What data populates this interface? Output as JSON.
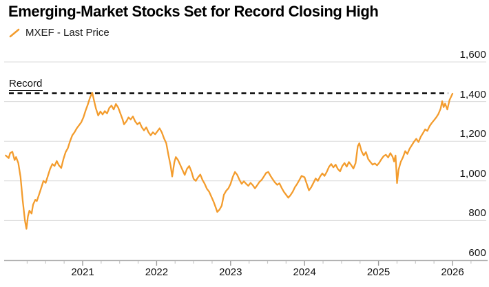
{
  "title": "Emerging-Market Stocks Set for Record Closing High",
  "legend": {
    "swatch_icon": "orange-slash-icon",
    "label": "MXEF - Last Price"
  },
  "annotation": {
    "label": "Record",
    "level": 1442
  },
  "colors": {
    "line": "#F39C2D",
    "grid": "#D9D9D9",
    "axis": "#B3B3B3",
    "major_tick": "#9B9B9B",
    "minor_tick": "#C6C6C6",
    "record_dash": "#000000",
    "text": "#111111",
    "background": "#FFFFFF"
  },
  "chart_data": {
    "type": "line",
    "title": "Emerging-Market Stocks Set for Record Closing High",
    "xlabel": "",
    "ylabel": "",
    "ylim": [
      600,
      1600
    ],
    "xlim": [
      2019.95,
      2026.05
    ],
    "grid": "horizontal",
    "legend_position": "top-left",
    "y_ticks": {
      "values": [
        1600,
        1400,
        1200,
        1000,
        800,
        600
      ],
      "labels": [
        "1,600",
        "1,400",
        "1,200",
        "1,000",
        "800",
        "600"
      ],
      "side": "right"
    },
    "x_ticks": {
      "values": [
        2021,
        2022,
        2023,
        2024,
        2025,
        2026
      ],
      "labels": [
        "2021",
        "2022",
        "2023",
        "2024",
        "2025",
        "2026"
      ],
      "minor_step": 0.25,
      "minor_start": 2020.25,
      "minor_end": 2026.25
    },
    "record_line": {
      "label": "Record",
      "value": 1442,
      "style": "dashed"
    },
    "series": [
      {
        "name": "MXEF - Last Price",
        "points": [
          [
            2019.96,
            1128
          ],
          [
            2020.0,
            1115
          ],
          [
            2020.02,
            1140
          ],
          [
            2020.05,
            1147
          ],
          [
            2020.08,
            1105
          ],
          [
            2020.1,
            1120
          ],
          [
            2020.13,
            1090
          ],
          [
            2020.16,
            1020
          ],
          [
            2020.19,
            900
          ],
          [
            2020.22,
            800
          ],
          [
            2020.24,
            758
          ],
          [
            2020.26,
            820
          ],
          [
            2020.28,
            850
          ],
          [
            2020.31,
            835
          ],
          [
            2020.33,
            880
          ],
          [
            2020.36,
            905
          ],
          [
            2020.38,
            898
          ],
          [
            2020.41,
            930
          ],
          [
            2020.44,
            965
          ],
          [
            2020.47,
            1000
          ],
          [
            2020.5,
            990
          ],
          [
            2020.53,
            1025
          ],
          [
            2020.56,
            1060
          ],
          [
            2020.59,
            1085
          ],
          [
            2020.62,
            1075
          ],
          [
            2020.65,
            1100
          ],
          [
            2020.68,
            1078
          ],
          [
            2020.71,
            1065
          ],
          [
            2020.74,
            1110
          ],
          [
            2020.77,
            1145
          ],
          [
            2020.8,
            1165
          ],
          [
            2020.83,
            1200
          ],
          [
            2020.86,
            1230
          ],
          [
            2020.89,
            1245
          ],
          [
            2020.92,
            1265
          ],
          [
            2020.95,
            1280
          ],
          [
            2020.98,
            1295
          ],
          [
            2021.01,
            1320
          ],
          [
            2021.04,
            1355
          ],
          [
            2021.07,
            1385
          ],
          [
            2021.1,
            1420
          ],
          [
            2021.13,
            1444
          ],
          [
            2021.16,
            1395
          ],
          [
            2021.18,
            1365
          ],
          [
            2021.21,
            1330
          ],
          [
            2021.24,
            1350
          ],
          [
            2021.27,
            1335
          ],
          [
            2021.3,
            1352
          ],
          [
            2021.33,
            1340
          ],
          [
            2021.36,
            1368
          ],
          [
            2021.39,
            1380
          ],
          [
            2021.42,
            1360
          ],
          [
            2021.45,
            1388
          ],
          [
            2021.48,
            1370
          ],
          [
            2021.51,
            1340
          ],
          [
            2021.54,
            1310
          ],
          [
            2021.56,
            1285
          ],
          [
            2021.59,
            1300
          ],
          [
            2021.62,
            1320
          ],
          [
            2021.65,
            1310
          ],
          [
            2021.68,
            1325
          ],
          [
            2021.71,
            1300
          ],
          [
            2021.74,
            1285
          ],
          [
            2021.77,
            1295
          ],
          [
            2021.8,
            1270
          ],
          [
            2021.83,
            1255
          ],
          [
            2021.86,
            1270
          ],
          [
            2021.89,
            1245
          ],
          [
            2021.92,
            1230
          ],
          [
            2021.95,
            1245
          ],
          [
            2021.98,
            1235
          ],
          [
            2022.01,
            1250
          ],
          [
            2022.04,
            1265
          ],
          [
            2022.07,
            1245
          ],
          [
            2022.1,
            1215
          ],
          [
            2022.13,
            1190
          ],
          [
            2022.16,
            1130
          ],
          [
            2022.19,
            1075
          ],
          [
            2022.21,
            1022
          ],
          [
            2022.24,
            1095
          ],
          [
            2022.26,
            1120
          ],
          [
            2022.29,
            1105
          ],
          [
            2022.32,
            1080
          ],
          [
            2022.35,
            1055
          ],
          [
            2022.38,
            1030
          ],
          [
            2022.41,
            1060
          ],
          [
            2022.44,
            1075
          ],
          [
            2022.47,
            1048
          ],
          [
            2022.5,
            1010
          ],
          [
            2022.53,
            1000
          ],
          [
            2022.56,
            1018
          ],
          [
            2022.59,
            1032
          ],
          [
            2022.62,
            1005
          ],
          [
            2022.65,
            985
          ],
          [
            2022.68,
            960
          ],
          [
            2022.71,
            945
          ],
          [
            2022.74,
            920
          ],
          [
            2022.77,
            895
          ],
          [
            2022.8,
            865
          ],
          [
            2022.82,
            843
          ],
          [
            2022.85,
            855
          ],
          [
            2022.88,
            875
          ],
          [
            2022.91,
            930
          ],
          [
            2022.94,
            950
          ],
          [
            2022.97,
            962
          ],
          [
            2023.0,
            985
          ],
          [
            2023.03,
            1020
          ],
          [
            2023.06,
            1045
          ],
          [
            2023.09,
            1030
          ],
          [
            2023.12,
            1005
          ],
          [
            2023.15,
            985
          ],
          [
            2023.18,
            998
          ],
          [
            2023.21,
            985
          ],
          [
            2023.24,
            975
          ],
          [
            2023.27,
            990
          ],
          [
            2023.3,
            978
          ],
          [
            2023.33,
            962
          ],
          [
            2023.36,
            978
          ],
          [
            2023.39,
            995
          ],
          [
            2023.42,
            1005
          ],
          [
            2023.45,
            1022
          ],
          [
            2023.48,
            1040
          ],
          [
            2023.51,
            1045
          ],
          [
            2023.54,
            1025
          ],
          [
            2023.57,
            1008
          ],
          [
            2023.6,
            992
          ],
          [
            2023.63,
            980
          ],
          [
            2023.66,
            988
          ],
          [
            2023.69,
            965
          ],
          [
            2023.72,
            945
          ],
          [
            2023.75,
            930
          ],
          [
            2023.78,
            915
          ],
          [
            2023.81,
            928
          ],
          [
            2023.84,
            945
          ],
          [
            2023.87,
            968
          ],
          [
            2023.9,
            985
          ],
          [
            2023.93,
            1005
          ],
          [
            2023.96,
            1025
          ],
          [
            2024.0,
            1018
          ],
          [
            2024.03,
            985
          ],
          [
            2024.06,
            952
          ],
          [
            2024.09,
            968
          ],
          [
            2024.12,
            990
          ],
          [
            2024.15,
            1012
          ],
          [
            2024.18,
            1000
          ],
          [
            2024.21,
            1022
          ],
          [
            2024.24,
            1038
          ],
          [
            2024.27,
            1025
          ],
          [
            2024.3,
            1045
          ],
          [
            2024.33,
            1070
          ],
          [
            2024.36,
            1085
          ],
          [
            2024.39,
            1068
          ],
          [
            2024.42,
            1082
          ],
          [
            2024.45,
            1060
          ],
          [
            2024.48,
            1048
          ],
          [
            2024.51,
            1075
          ],
          [
            2024.54,
            1090
          ],
          [
            2024.57,
            1072
          ],
          [
            2024.6,
            1095
          ],
          [
            2024.63,
            1080
          ],
          [
            2024.66,
            1062
          ],
          [
            2024.69,
            1090
          ],
          [
            2024.72,
            1175
          ],
          [
            2024.74,
            1190
          ],
          [
            2024.77,
            1150
          ],
          [
            2024.8,
            1128
          ],
          [
            2024.83,
            1145
          ],
          [
            2024.86,
            1110
          ],
          [
            2024.89,
            1095
          ],
          [
            2024.92,
            1082
          ],
          [
            2024.95,
            1088
          ],
          [
            2024.98,
            1078
          ],
          [
            2025.01,
            1092
          ],
          [
            2025.04,
            1110
          ],
          [
            2025.07,
            1125
          ],
          [
            2025.1,
            1132
          ],
          [
            2025.13,
            1118
          ],
          [
            2025.16,
            1140
          ],
          [
            2025.19,
            1122
          ],
          [
            2025.21,
            1098
          ],
          [
            2025.23,
            1128
          ],
          [
            2025.25,
            989
          ],
          [
            2025.27,
            1055
          ],
          [
            2025.3,
            1095
          ],
          [
            2025.33,
            1118
          ],
          [
            2025.36,
            1150
          ],
          [
            2025.39,
            1136
          ],
          [
            2025.42,
            1162
          ],
          [
            2025.45,
            1180
          ],
          [
            2025.48,
            1198
          ],
          [
            2025.51,
            1212
          ],
          [
            2025.54,
            1196
          ],
          [
            2025.57,
            1222
          ],
          [
            2025.6,
            1240
          ],
          [
            2025.63,
            1260
          ],
          [
            2025.66,
            1252
          ],
          [
            2025.69,
            1276
          ],
          [
            2025.72,
            1292
          ],
          [
            2025.75,
            1306
          ],
          [
            2025.78,
            1320
          ],
          [
            2025.81,
            1338
          ],
          [
            2025.84,
            1365
          ],
          [
            2025.86,
            1402
          ],
          [
            2025.88,
            1372
          ],
          [
            2025.9,
            1390
          ],
          [
            2025.93,
            1360
          ],
          [
            2025.96,
            1408
          ],
          [
            2026.0,
            1440
          ]
        ]
      }
    ]
  }
}
